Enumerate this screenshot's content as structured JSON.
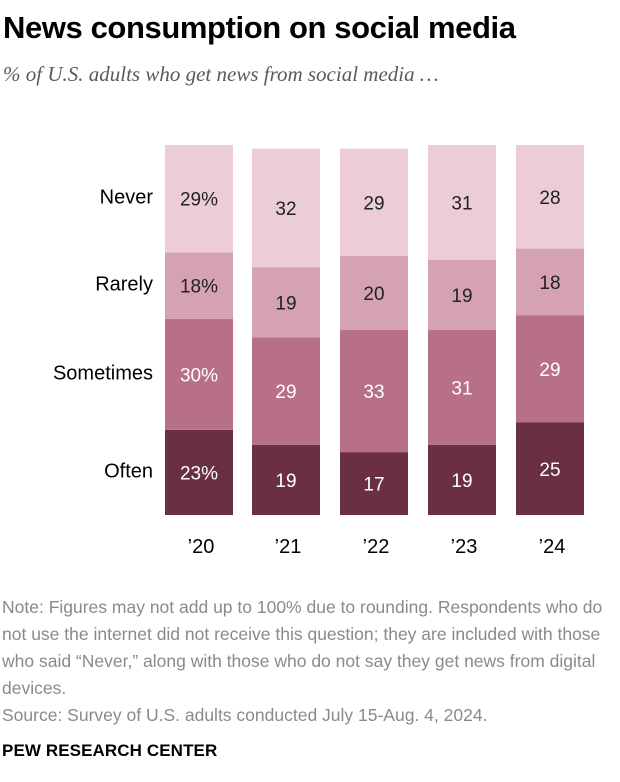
{
  "header": {
    "title": "News consumption on social media",
    "subtitle": "% of U.S. adults who get news from social media …"
  },
  "chart_data": {
    "type": "stacked-bar",
    "title": "News consumption on social media",
    "subtitle": "% of U.S. adults who get news from social media …",
    "categories": [
      "’20",
      "’21",
      "’22",
      "’23",
      "’24"
    ],
    "series": [
      {
        "name": "Often",
        "color": "#6b2f44",
        "values": [
          23,
          19,
          17,
          19,
          25
        ],
        "labels": [
          "23%",
          "19",
          "17",
          "19",
          "25"
        ]
      },
      {
        "name": "Sometimes",
        "color": "#b87089",
        "values": [
          30,
          29,
          33,
          31,
          29
        ],
        "labels": [
          "30%",
          "29",
          "33",
          "31",
          "29"
        ]
      },
      {
        "name": "Rarely",
        "color": "#d5a2b5",
        "values": [
          18,
          19,
          20,
          19,
          18
        ],
        "labels": [
          "18%",
          "19",
          "20",
          "19",
          "18"
        ]
      },
      {
        "name": "Never",
        "color": "#ebccd8",
        "values": [
          29,
          32,
          29,
          31,
          28
        ],
        "labels": [
          "29%",
          "32",
          "29",
          "31",
          "28"
        ]
      }
    ],
    "label_colors": {
      "Often": "#ffffff",
      "Sometimes": "#ffffff",
      "Rarely": "#222222",
      "Never": "#222222"
    },
    "legend_placement": "left",
    "ylabel": "",
    "xlabel": ""
  },
  "notes": {
    "note": "Note: Figures may not add up to 100% due to rounding. Respondents who do not use the internet did not receive this question; they are included with those who said “Never,” along with those who do not say they get news from digital devices.",
    "source": "Source: Survey of U.S. adults conducted July 15-Aug. 4, 2024."
  },
  "footer": {
    "org": "PEW RESEARCH CENTER"
  }
}
